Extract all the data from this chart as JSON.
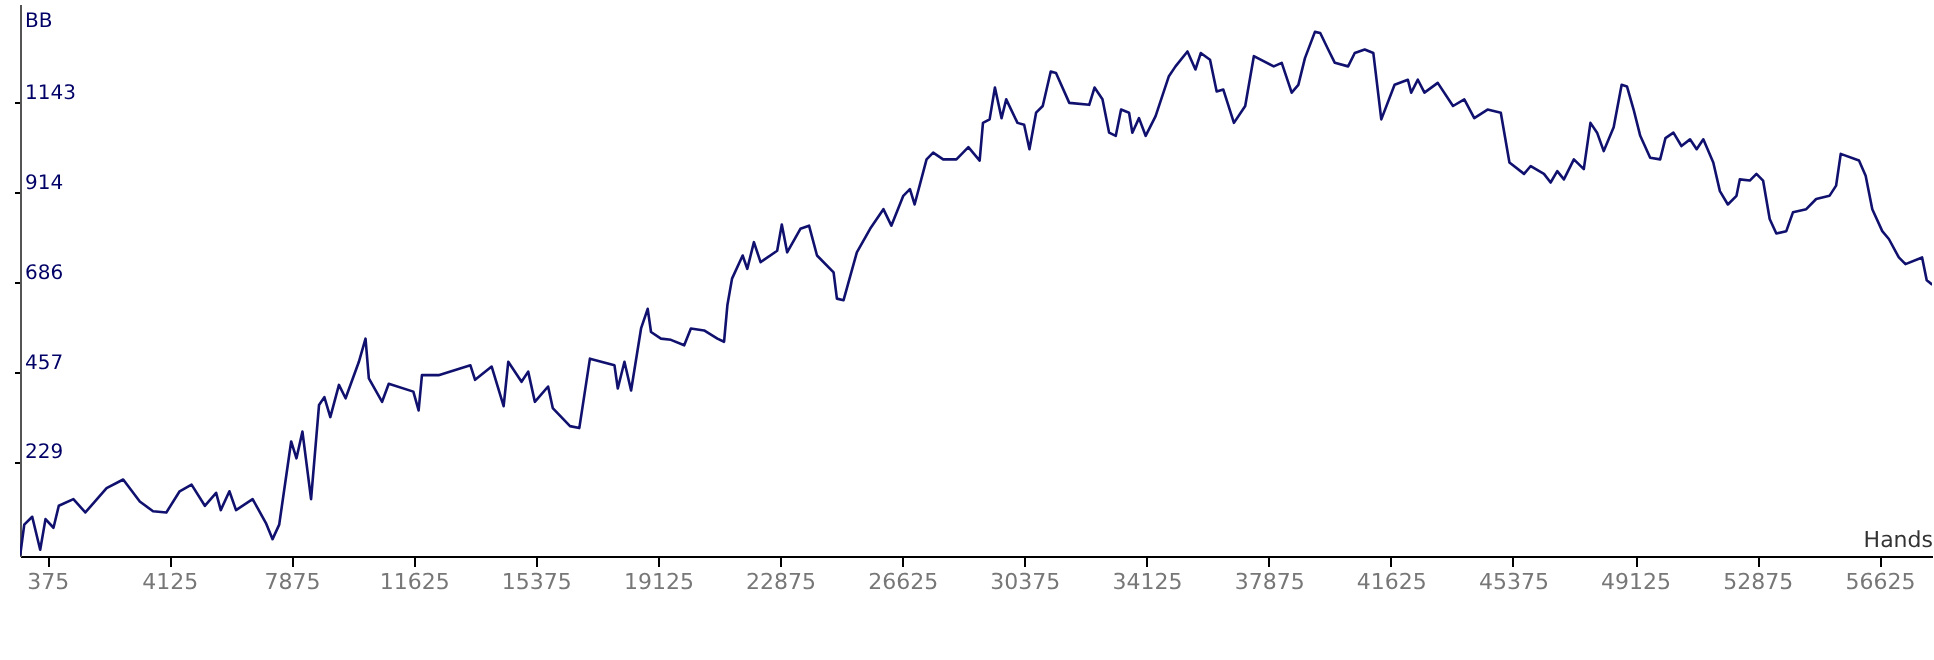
{
  "chart_data": {
    "type": "line",
    "xlabel": "Hands",
    "ylabel": "BB",
    "xlim": [
      -460,
      58240
    ],
    "xticks": [
      375,
      4125,
      7875,
      11625,
      15375,
      19125,
      22875,
      26625,
      30375,
      34125,
      37875,
      41625,
      45375,
      49125,
      52875,
      56625
    ],
    "ylim": [
      -13,
      1394
    ],
    "yticks": [
      229,
      457,
      686,
      914,
      1143
    ],
    "grid": false,
    "marker": "none",
    "line_style": "solid",
    "x": [
      -451,
      -329,
      -85,
      160,
      323,
      568,
      731,
      1179,
      1546,
      2198,
      2708,
      3217,
      3625,
      4033,
      4441,
      4807,
      5215,
      5561,
      5704,
      5969,
      6173,
      6682,
      7090,
      7294,
      7498,
      7865,
      8028,
      8211,
      8476,
      8721,
      8884,
      9067,
      9332,
      9536,
      9944,
      10148,
      10250,
      10657,
      10861,
      11616,
      11778,
      11880,
      12390,
      13368,
      13511,
      14021,
      14388,
      14530,
      14938,
      15142,
      15346,
      15753,
      15896,
      16426,
      16711,
      17037,
      17384,
      17791,
      17893,
      18097,
      18301,
      18607,
      18811,
      18913,
      19218,
      19524,
      19932,
      20136,
      20543,
      20951,
      21155,
      21257,
      21400,
      21726,
      21868,
      22072,
      22276,
      22786,
      22928,
      23092,
      23499,
      23764,
      24009,
      24518,
      24620,
      24824,
      25232,
      25639,
      26047,
      26291,
      26658,
      26862,
      27005,
      27372,
      27575,
      27881,
      28289,
      28656,
      29002,
      29104,
      29308,
      29471,
      29675,
      29818,
      30164,
      30368,
      30531,
      30735,
      30939,
      31184,
      31346,
      31754,
      32366,
      32529,
      32773,
      32977,
      33181,
      33344,
      33589,
      33690,
      33894,
      34098,
      34404,
      34812,
      35015,
      35382,
      35627,
      35790,
      36075,
      36279,
      36483,
      36809,
      37155,
      37420,
      38032,
      38276,
      38582,
      38786,
      38989,
      39295,
      39458,
      39703,
      39907,
      40314,
      40518,
      40824,
      41089,
      41333,
      41741,
      42149,
      42251,
      42455,
      42658,
      43066,
      43535,
      43881,
      44187,
      44595,
      45002,
      45267,
      45716,
      45920,
      46327,
      46531,
      46735,
      46939,
      47245,
      47550,
      47754,
      47958,
      48162,
      48467,
      48712,
      48875,
      49079,
      49283,
      49588,
      49894,
      50057,
      50302,
      50547,
      50811,
      51015,
      51219,
      51525,
      51728,
      51973,
      52238,
      52340,
      52646,
      52850,
      53054,
      53257,
      53461,
      53767,
      53971,
      54379,
      54684,
      55092,
      55296,
      55438,
      55999,
      56203,
      56407,
      56713,
      56916,
      57222,
      57426,
      57936,
      58078,
      58230
    ],
    "series": [
      {
        "color": "#10106e",
        "values": [
          -9,
          67,
          87,
          3,
          81,
          59,
          115,
          132,
          98,
          160,
          182,
          126,
          101,
          98,
          152,
          169,
          115,
          148,
          104,
          152,
          104,
          132,
          71,
          30,
          67,
          279,
          236,
          304,
          132,
          372,
          392,
          341,
          423,
          389,
          482,
          541,
          440,
          380,
          426,
          406,
          358,
          448,
          448,
          473,
          436,
          470,
          369,
          482,
          431,
          457,
          380,
          419,
          364,
          318,
          313,
          490,
          482,
          473,
          414,
          482,
          409,
          567,
          617,
          558,
          541,
          538,
          524,
          567,
          562,
          541,
          533,
          626,
          694,
          753,
          719,
          787,
          736,
          765,
          832,
          761,
          821,
          829,
          753,
          710,
          643,
          639,
          761,
          821,
          871,
          829,
          905,
          922,
          883,
          998,
          1015,
          998,
          998,
          1029,
          995,
          1091,
          1100,
          1181,
          1103,
          1151,
          1091,
          1086,
          1024,
          1117,
          1134,
          1222,
          1218,
          1142,
          1137,
          1181,
          1151,
          1066,
          1058,
          1125,
          1117,
          1066,
          1103,
          1058,
          1108,
          1210,
          1235,
          1273,
          1227,
          1269,
          1252,
          1171,
          1176,
          1091,
          1134,
          1261,
          1235,
          1244,
          1168,
          1188,
          1256,
          1323,
          1320,
          1278,
          1244,
          1235,
          1269,
          1278,
          1269,
          1100,
          1188,
          1201,
          1168,
          1201,
          1168,
          1193,
          1134,
          1151,
          1103,
          1125,
          1117,
          990,
          961,
          981,
          961,
          939,
          968,
          947,
          998,
          973,
          1091,
          1066,
          1019,
          1080,
          1188,
          1184,
          1125,
          1058,
          1002,
          998,
          1052,
          1066,
          1032,
          1049,
          1024,
          1049,
          990,
          917,
          883,
          905,
          947,
          944,
          961,
          944,
          846,
          809,
          815,
          863,
          871,
          897,
          905,
          931,
          1012,
          995,
          956,
          871,
          815,
          795,
          748,
          731,
          748,
          690,
          680
        ]
      }
    ]
  }
}
